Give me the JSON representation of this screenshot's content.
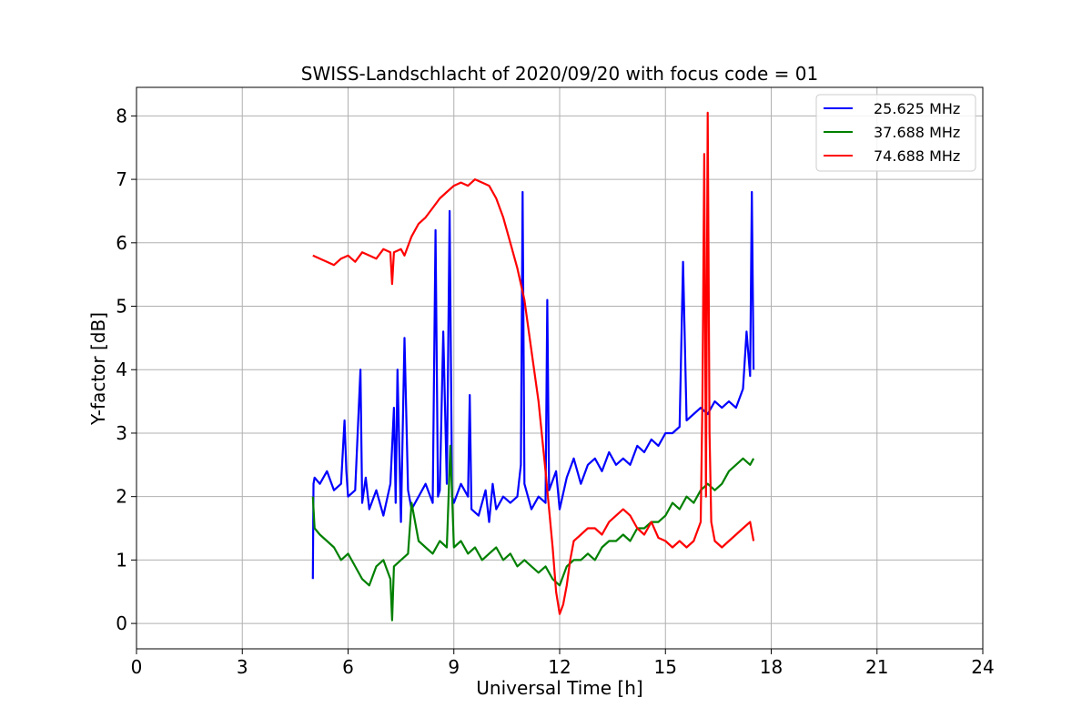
{
  "chart_data": {
    "type": "line",
    "title": "SWISS-Landschlacht of 2020/09/20 with focus code = 01",
    "xlabel": "Universal Time [h]",
    "ylabel": "Y-factor [dB]",
    "xlim": [
      0,
      24
    ],
    "ylim": [
      -0.4,
      8.45
    ],
    "xticks": [
      0,
      3,
      6,
      9,
      12,
      15,
      18,
      21,
      24
    ],
    "yticks": [
      0,
      1,
      2,
      3,
      4,
      5,
      6,
      7,
      8
    ],
    "grid": true,
    "legend_position": "top-right",
    "series": [
      {
        "name": "25.625 MHz",
        "color": "#0000ff",
        "x": [
          5.0,
          5.02,
          5.05,
          5.2,
          5.4,
          5.6,
          5.8,
          5.9,
          5.95,
          6.0,
          6.2,
          6.35,
          6.4,
          6.5,
          6.6,
          6.8,
          7.0,
          7.2,
          7.3,
          7.35,
          7.4,
          7.5,
          7.6,
          7.7,
          7.8,
          8.0,
          8.2,
          8.4,
          8.48,
          8.55,
          8.6,
          8.7,
          8.8,
          8.88,
          8.95,
          9.0,
          9.2,
          9.4,
          9.45,
          9.5,
          9.7,
          9.9,
          10.0,
          10.1,
          10.2,
          10.4,
          10.6,
          10.8,
          10.9,
          10.95,
          11.0,
          11.2,
          11.4,
          11.6,
          11.65,
          11.7,
          11.9,
          12.0,
          12.2,
          12.4,
          12.6,
          12.8,
          13.0,
          13.2,
          13.4,
          13.6,
          13.8,
          14.0,
          14.2,
          14.4,
          14.6,
          14.8,
          15.0,
          15.2,
          15.4,
          15.5,
          15.6,
          15.8,
          16.0,
          16.2,
          16.4,
          16.6,
          16.8,
          17.0,
          17.2,
          17.3,
          17.4,
          17.45,
          17.5
        ],
        "values": [
          0.7,
          2.2,
          2.3,
          2.2,
          2.4,
          2.1,
          2.2,
          3.2,
          2.4,
          2.0,
          2.1,
          4.0,
          1.9,
          2.3,
          1.8,
          2.1,
          1.7,
          2.2,
          3.4,
          1.9,
          4.0,
          1.6,
          4.5,
          2.1,
          1.8,
          2.0,
          2.2,
          1.9,
          6.2,
          2.0,
          2.1,
          4.6,
          2.2,
          6.5,
          2.0,
          1.9,
          2.2,
          2.0,
          3.6,
          1.8,
          1.7,
          2.1,
          1.6,
          2.2,
          1.8,
          2.0,
          1.9,
          2.0,
          2.5,
          6.8,
          2.2,
          1.8,
          2.0,
          1.9,
          5.1,
          2.1,
          2.4,
          1.8,
          2.3,
          2.6,
          2.2,
          2.5,
          2.6,
          2.4,
          2.7,
          2.5,
          2.6,
          2.5,
          2.8,
          2.7,
          2.9,
          2.8,
          3.0,
          3.0,
          3.1,
          5.7,
          3.2,
          3.3,
          3.4,
          3.3,
          3.5,
          3.4,
          3.5,
          3.4,
          3.7,
          4.6,
          3.9,
          6.8,
          4.0
        ]
      },
      {
        "name": "37.688 MHz",
        "color": "#008000",
        "x": [
          5.0,
          5.05,
          5.2,
          5.4,
          5.6,
          5.8,
          6.0,
          6.2,
          6.4,
          6.6,
          6.8,
          7.0,
          7.2,
          7.25,
          7.3,
          7.5,
          7.7,
          7.8,
          8.0,
          8.2,
          8.4,
          8.6,
          8.8,
          8.9,
          9.0,
          9.2,
          9.4,
          9.6,
          9.8,
          10.0,
          10.2,
          10.4,
          10.6,
          10.8,
          11.0,
          11.2,
          11.4,
          11.6,
          11.8,
          12.0,
          12.2,
          12.4,
          12.6,
          12.8,
          13.0,
          13.2,
          13.4,
          13.6,
          13.8,
          14.0,
          14.2,
          14.4,
          14.6,
          14.8,
          15.0,
          15.2,
          15.4,
          15.6,
          15.8,
          16.0,
          16.2,
          16.4,
          16.6,
          16.8,
          17.0,
          17.2,
          17.4,
          17.5
        ],
        "values": [
          2.0,
          1.5,
          1.4,
          1.3,
          1.2,
          1.0,
          1.1,
          0.9,
          0.7,
          0.6,
          0.9,
          1.0,
          0.7,
          0.05,
          0.9,
          1.0,
          1.1,
          1.9,
          1.3,
          1.2,
          1.1,
          1.3,
          1.2,
          2.8,
          1.2,
          1.3,
          1.1,
          1.2,
          1.0,
          1.1,
          1.2,
          1.0,
          1.1,
          0.9,
          1.0,
          0.9,
          0.8,
          0.9,
          0.7,
          0.6,
          0.9,
          1.0,
          1.0,
          1.1,
          1.0,
          1.2,
          1.3,
          1.3,
          1.4,
          1.3,
          1.5,
          1.5,
          1.6,
          1.6,
          1.7,
          1.9,
          1.8,
          2.0,
          1.9,
          2.1,
          2.2,
          2.1,
          2.2,
          2.4,
          2.5,
          2.6,
          2.5,
          2.6
        ]
      },
      {
        "name": "74.688 MHz",
        "color": "#ff0000",
        "x": [
          5.0,
          5.2,
          5.4,
          5.6,
          5.8,
          6.0,
          6.2,
          6.4,
          6.6,
          6.8,
          7.0,
          7.2,
          7.25,
          7.3,
          7.5,
          7.6,
          7.8,
          8.0,
          8.2,
          8.4,
          8.6,
          8.8,
          9.0,
          9.2,
          9.4,
          9.6,
          9.8,
          10.0,
          10.2,
          10.4,
          10.6,
          10.8,
          11.0,
          11.2,
          11.4,
          11.6,
          11.8,
          11.9,
          12.0,
          12.1,
          12.2,
          12.3,
          12.4,
          12.6,
          12.8,
          13.0,
          13.2,
          13.4,
          13.6,
          13.8,
          14.0,
          14.2,
          14.4,
          14.6,
          14.8,
          15.0,
          15.2,
          15.4,
          15.6,
          15.8,
          16.0,
          16.05,
          16.1,
          16.15,
          16.2,
          16.25,
          16.3,
          16.4,
          16.6,
          16.8,
          17.0,
          17.2,
          17.4,
          17.5
        ],
        "values": [
          5.8,
          5.75,
          5.7,
          5.65,
          5.75,
          5.8,
          5.7,
          5.85,
          5.8,
          5.75,
          5.9,
          5.85,
          5.35,
          5.85,
          5.9,
          5.8,
          6.1,
          6.3,
          6.4,
          6.55,
          6.7,
          6.8,
          6.9,
          6.95,
          6.9,
          7.0,
          6.95,
          6.9,
          6.7,
          6.4,
          6.0,
          5.6,
          5.1,
          4.3,
          3.5,
          2.4,
          1.2,
          0.5,
          0.15,
          0.3,
          0.6,
          1.0,
          1.3,
          1.4,
          1.5,
          1.5,
          1.4,
          1.6,
          1.7,
          1.8,
          1.7,
          1.5,
          1.4,
          1.6,
          1.35,
          1.3,
          1.2,
          1.3,
          1.2,
          1.3,
          1.6,
          3.5,
          7.4,
          2.0,
          8.05,
          3.0,
          1.6,
          1.3,
          1.2,
          1.3,
          1.4,
          1.5,
          1.6,
          1.3
        ]
      }
    ]
  }
}
